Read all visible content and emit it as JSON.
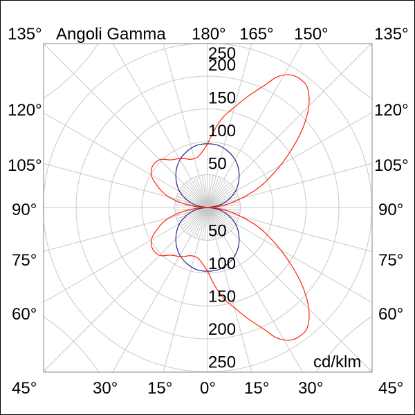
{
  "chart_data": {
    "type": "polar-line",
    "title": "Angoli Gamma",
    "unit_label": "cd/klm",
    "radial_range": [
      0,
      250
    ],
    "radial_ticks": [
      50,
      100,
      150,
      200,
      250
    ],
    "grid": true,
    "angle_labels": {
      "top": [
        "135°",
        "180°",
        "165°",
        "150°",
        "135°"
      ],
      "left": [
        "120°",
        "105°",
        "90°",
        "75°",
        "60°"
      ],
      "right": [
        "120°",
        "105°",
        "90°",
        "75°",
        "60°"
      ],
      "bottom": [
        "45°",
        "30°",
        "15°",
        "0°",
        "15°",
        "30°",
        "45°"
      ]
    },
    "series": [
      {
        "color": "#2b1f8f",
        "gamma": [
          -90,
          -80,
          -70,
          -60,
          -50,
          -40,
          -30,
          -20,
          -10,
          0,
          10,
          20,
          30,
          40,
          50,
          60,
          70,
          80,
          90
        ],
        "values": [
          0,
          17,
          33,
          49,
          62,
          74,
          84,
          91,
          96,
          97,
          96,
          91,
          84,
          74,
          62,
          49,
          33,
          17,
          0
        ]
      },
      {
        "color": "#ff2000",
        "gamma": [
          -90,
          -85,
          -80,
          -75,
          -70,
          -62,
          -56,
          -50,
          -44,
          -38,
          -30,
          -25,
          -20,
          -15,
          -10,
          -5,
          0,
          5,
          10,
          15,
          20,
          25,
          28,
          32,
          36,
          40,
          45,
          50,
          55,
          60,
          66,
          70,
          75,
          80,
          85,
          90
        ],
        "values": [
          0,
          20,
          40,
          60,
          75,
          95,
          103,
          105,
          102,
          92,
          86,
          82,
          78,
          77,
          79,
          86,
          97,
          118,
          140,
          158,
          180,
          205,
          225,
          238,
          241,
          237,
          218,
          190,
          158,
          128,
          97,
          78,
          53,
          33,
          15,
          0
        ]
      }
    ]
  }
}
